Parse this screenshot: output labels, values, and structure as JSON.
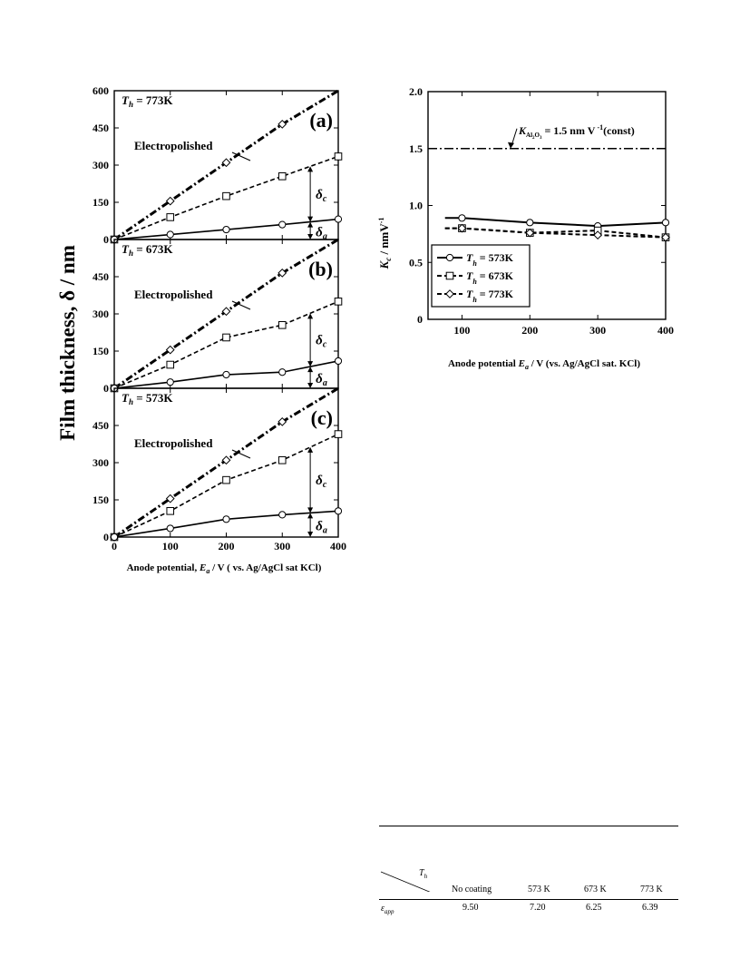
{
  "left_figure": {
    "ylabel": "Film thickness,  δ  /  nm",
    "xlabel_parts": [
      "Anode potential, ",
      "E",
      "a",
      " / V ( vs. Ag/AgCl sat KCl)"
    ],
    "x_ticks": [
      "0",
      "100",
      "200",
      "300",
      "400"
    ],
    "y_ticks_top": [
      "0",
      "150",
      "300",
      "450",
      "600"
    ],
    "y_ticks_other": [
      "0",
      "150",
      "300",
      "450"
    ],
    "ep_label": "Electropolished",
    "delta_c": "δ",
    "delta_c_sub": "c",
    "delta_a": "δ",
    "delta_a_sub": "a"
  },
  "right_figure": {
    "ylabel_main": "K",
    "ylabel_sub": "c",
    "ylabel_rest": "  /  nmV",
    "ylabel_sup": "-1",
    "xlabel_parts": [
      "Anode potential  ",
      "E",
      "a",
      "  /  V (vs. Ag/AgCl sat. KCl)"
    ],
    "x_ticks": [
      "100",
      "200",
      "300",
      "400"
    ],
    "y_ticks": [
      "0",
      "0.5",
      "1.0",
      "1.5",
      "2.0"
    ],
    "annotation": {
      "main": "K",
      "sub": "Al",
      "sub2": "2",
      "sub3": "O",
      "sub4": "3",
      "rest": " = 1.5 nm V",
      "sup": " -1",
      "tail": "(const)"
    },
    "legend": [
      {
        "T": "T",
        "h": "h",
        "text": " = 573K"
      },
      {
        "T": "T",
        "h": "h",
        "text": " = 673K"
      },
      {
        "T": "T",
        "h": "h",
        "text": " = 773K"
      }
    ]
  },
  "chart_data": [
    {
      "type": "line",
      "panel": "(a)",
      "condition": "T_h = 773K",
      "title_T": "T",
      "title_sub": "h",
      "title_rest": " = 773K",
      "x": [
        0,
        100,
        200,
        300,
        400
      ],
      "ylim": [
        0,
        600
      ],
      "series": [
        {
          "name": "Electropolished",
          "values": [
            0,
            155,
            310,
            465,
            620
          ]
        },
        {
          "values": [
            0,
            90,
            175,
            255,
            335
          ]
        },
        {
          "values": [
            0,
            20,
            40,
            60,
            82
          ]
        }
      ]
    },
    {
      "type": "line",
      "panel": "(b)",
      "condition": "T_h = 673K",
      "title_T": "T",
      "title_sub": "h",
      "title_rest": " = 673K",
      "x": [
        0,
        100,
        200,
        300,
        400
      ],
      "ylim": [
        0,
        600
      ],
      "series": [
        {
          "name": "Electropolished",
          "values": [
            0,
            155,
            310,
            465,
            620
          ]
        },
        {
          "values": [
            0,
            95,
            205,
            255,
            350
          ]
        },
        {
          "values": [
            0,
            25,
            55,
            65,
            110
          ]
        }
      ]
    },
    {
      "type": "line",
      "panel": "(c)",
      "condition": "T_h = 573K",
      "title_T": "T",
      "title_sub": "h",
      "title_rest": " = 573K",
      "x": [
        0,
        100,
        200,
        300,
        400
      ],
      "ylim": [
        0,
        600
      ],
      "series": [
        {
          "name": "Electropolished",
          "values": [
            0,
            155,
            310,
            465,
            620
          ]
        },
        {
          "values": [
            0,
            105,
            230,
            310,
            415
          ]
        },
        {
          "values": [
            0,
            35,
            72,
            90,
            105
          ]
        }
      ]
    },
    {
      "type": "line",
      "xlim": [
        50,
        400
      ],
      "ylim": [
        0,
        2.0
      ],
      "x": [
        100,
        200,
        300,
        400
      ],
      "series": [
        {
          "name": "T_h = 573K",
          "values": [
            0.89,
            0.85,
            0.82,
            0.85
          ]
        },
        {
          "name": "T_h = 673K",
          "values": [
            0.8,
            0.76,
            0.78,
            0.72
          ]
        },
        {
          "name": "T_h = 773K",
          "values": [
            0.8,
            0.76,
            0.74,
            0.72
          ]
        }
      ],
      "constant_line": 1.5
    }
  ],
  "table": {
    "corner_label_main": "T",
    "corner_label_sub": "h",
    "columns": [
      "No coating",
      "573 K",
      "673 K",
      "773 K"
    ],
    "row_label_main": "ε",
    "row_label_sub": "app",
    "values": [
      "9.50",
      "7.20",
      "6.25",
      "6.39"
    ]
  }
}
